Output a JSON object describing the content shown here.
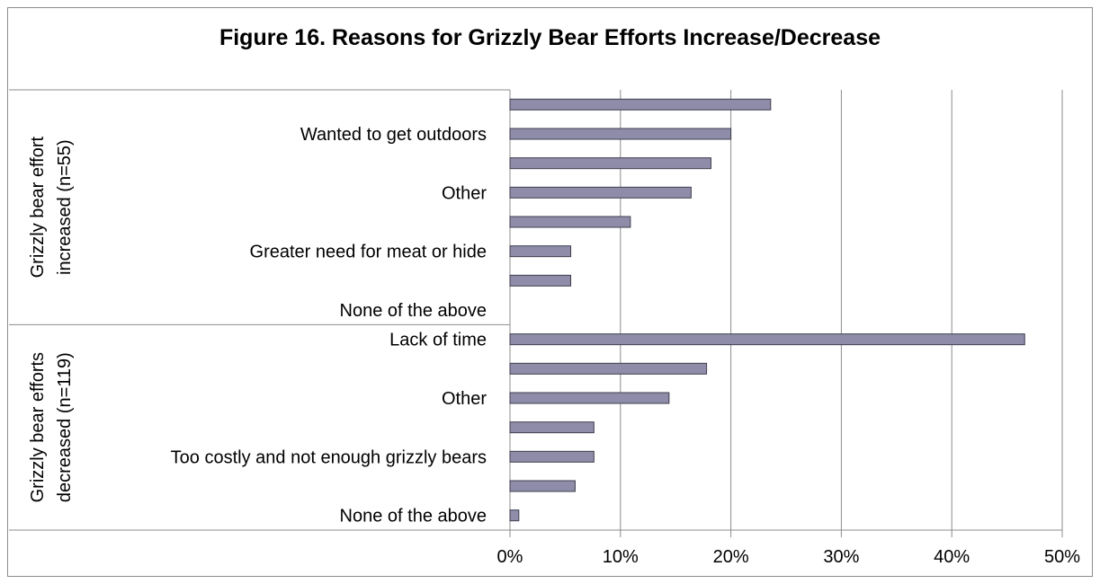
{
  "chart_data": {
    "type": "bar",
    "orientation": "horizontal",
    "title": "Figure 16. Reasons for Grizzly Bear Efforts Increase/Decrease",
    "xlim": [
      0,
      50
    ],
    "x_ticks": [
      "0%",
      "10%",
      "20%",
      "30%",
      "40%",
      "50%"
    ],
    "grid": true,
    "legend": "none",
    "bar_color": "#8e8ca8",
    "groups": [
      {
        "label": "Grizzly bear effort increased (n=55)",
        "label_lines": [
          "Grizzly bear effort",
          "increased (n=55)"
        ],
        "categories": [
          "",
          "Wanted to get outdoors",
          "",
          "Other",
          "",
          "Greater need for meat or hide",
          "",
          "None of the above"
        ],
        "values": [
          23.6,
          20.0,
          18.2,
          16.4,
          10.9,
          5.5,
          5.5,
          0
        ]
      },
      {
        "label": "Grizzly bear efforts decreased (n=119)",
        "label_lines": [
          "Grizzly bear efforts",
          "decreased (n=119)"
        ],
        "categories": [
          "Lack of time",
          "",
          "Other",
          "",
          "Too costly and not enough grizzly bears",
          "",
          "None of the above"
        ],
        "values": [
          46.6,
          17.8,
          14.4,
          7.6,
          7.6,
          5.9,
          0.8
        ]
      }
    ]
  }
}
